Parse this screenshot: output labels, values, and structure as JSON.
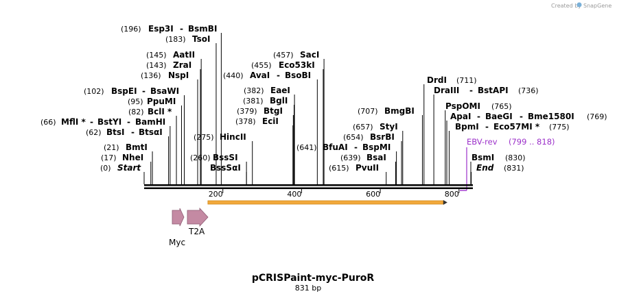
{
  "credit": {
    "text": "Created by",
    "brand": "SnapGene"
  },
  "map": {
    "name": "pCRISPaint-myc-PuroR",
    "length_label": "831 bp",
    "total_bp": 831,
    "ticks": [
      200,
      400,
      600,
      800
    ]
  },
  "sites": [
    {
      "pos_label": "(196)",
      "name": "Esp3I",
      "sep": "-",
      "name2": "BsmBI",
      "bp": 196
    },
    {
      "pos_label": "(183)",
      "name": "TsoI",
      "bp": 183
    },
    {
      "pos_label": "(145)",
      "name": "AatII",
      "bp": 145
    },
    {
      "pos_label": "(143)",
      "name": "ZraI",
      "bp": 143
    },
    {
      "pos_label": "(136)",
      "name": "NspI",
      "bp": 136
    },
    {
      "pos_label": "(102)",
      "name": "BspEI",
      "sep": "-",
      "name2": "BsaWI",
      "bp": 102
    },
    {
      "pos_label": "(95)",
      "name": "PpuMI",
      "bp": 95
    },
    {
      "pos_label": "(82)",
      "name": "BclI *",
      "bp": 82
    },
    {
      "pos_label": "(66)",
      "name": "MflI *",
      "sep": "-",
      "name2": "BstYI",
      "sep2": "-",
      "name3": "BamHI",
      "bp": 66
    },
    {
      "pos_label": "(62)",
      "name": "BtsI",
      "sep": "-",
      "name2": "BtsαI",
      "bp": 62
    },
    {
      "pos_label": "(21)",
      "name": "BmtI",
      "bp": 21
    },
    {
      "pos_label": "(17)",
      "name": "NheI",
      "bp": 17
    },
    {
      "pos_label": "(0)",
      "name": "Start",
      "bp": 0
    },
    {
      "pos_label": "(275)",
      "name": "HincII",
      "bp": 275
    },
    {
      "pos_label": "(260)",
      "name": "BssSI",
      "bp": 260
    },
    {
      "pos_label": "",
      "name": "BssSαI",
      "bp": 260
    },
    {
      "pos_label": "(457)",
      "name": "SacI",
      "bp": 457
    },
    {
      "pos_label": "(455)",
      "name": "Eco53kI",
      "bp": 455
    },
    {
      "pos_label": "(440)",
      "name": "AvaI",
      "sep": "-",
      "name2": "BsoBI",
      "bp": 440
    },
    {
      "pos_label": "(382)",
      "name": "EaeI",
      "bp": 382
    },
    {
      "pos_label": "(381)",
      "name": "BglI",
      "bp": 381
    },
    {
      "pos_label": "(379)",
      "name": "BtgI",
      "bp": 379
    },
    {
      "pos_label": "(378)",
      "name": "EciI",
      "bp": 378
    },
    {
      "pos_label": "(641)",
      "name": "BfuAI",
      "sep": "-",
      "name2": "BspMI",
      "bp": 641
    },
    {
      "pos_label": "(707)",
      "name": "BmgBI",
      "bp": 707
    },
    {
      "pos_label": "(657)",
      "name": "StyI",
      "bp": 657
    },
    {
      "pos_label": "(654)",
      "name": "BsrBI",
      "bp": 654
    },
    {
      "pos_label": "(639)",
      "name": "BsaI",
      "bp": 639
    },
    {
      "pos_label": "(615)",
      "name": "PvuII",
      "bp": 615
    },
    {
      "pos_label": "(711)",
      "name": "DrdI",
      "bp": 711
    },
    {
      "pos_label": "(736)",
      "name": "DraIII",
      "sep": "-",
      "name2": "BstAPI",
      "bp": 736
    },
    {
      "pos_label": "(765)",
      "name": "PspOMI",
      "bp": 765
    },
    {
      "pos_label": "(769)",
      "name": "ApaI",
      "sep": "-",
      "name2": "BaeGI",
      "sep2": "-",
      "name3": "Bme1580I",
      "bp": 769
    },
    {
      "pos_label": "(775)",
      "name": "BpmI",
      "sep": "-",
      "name2": "Eco57MI *",
      "bp": 775
    },
    {
      "pos_label": "(830)",
      "name": "BsmI",
      "bp": 830
    },
    {
      "pos_label": "(831)",
      "name": "End",
      "bp": 831
    }
  ],
  "primer": {
    "name": "EBV-rev",
    "range": "(799 .. 818)",
    "start": 799,
    "end": 818,
    "color": "#9b2fc9"
  },
  "features": [
    {
      "name": "Myc",
      "start": 70,
      "end": 100,
      "color": "#c48aa3"
    },
    {
      "name": "T2A",
      "start": 108,
      "end": 160,
      "color": "#c48aa3"
    },
    {
      "name": "",
      "start": 162,
      "end": 760,
      "color": "#f2a93b"
    }
  ],
  "colors": {
    "axis": "#000000",
    "primer": "#9b2fc9",
    "orf": "#f2a93b",
    "feature": "#c48aa3"
  }
}
